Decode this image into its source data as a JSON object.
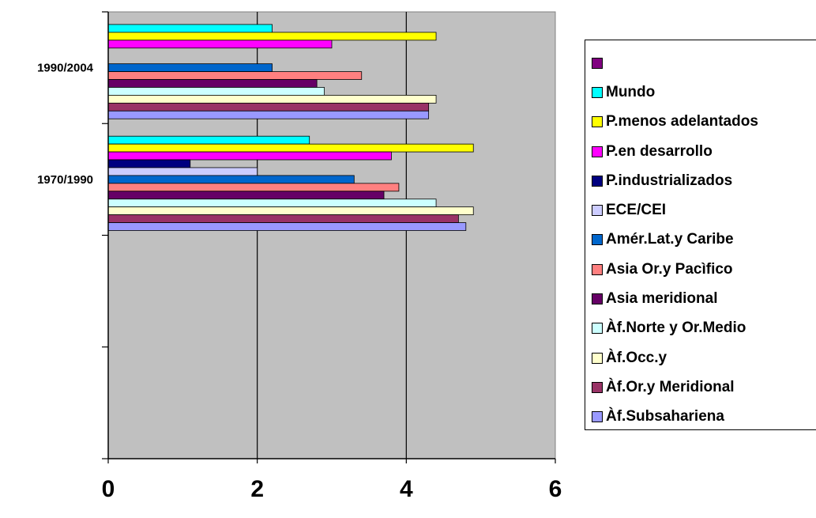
{
  "chart_data": {
    "type": "bar",
    "orientation": "horizontal",
    "categories": [
      "1990/2004",
      "1970/1990"
    ],
    "xlim": [
      0,
      6
    ],
    "x_ticks": [
      "0",
      "2",
      "4",
      "6"
    ],
    "grid": "vertical",
    "legend_position": "right",
    "series": [
      {
        "name": "",
        "color": "#800080",
        "values": [
          null,
          null
        ]
      },
      {
        "name": "Mundo",
        "color": "#00FFFF",
        "values": [
          2.2,
          2.7
        ]
      },
      {
        "name": "P.menos adelantados",
        "color": "#FFFF00",
        "values": [
          4.4,
          4.9
        ]
      },
      {
        "name": "P.en desarrollo",
        "color": "#FF00FF",
        "values": [
          3.0,
          3.8
        ]
      },
      {
        "name": "P.industrializados",
        "color": "#000080",
        "values": [
          null,
          1.1
        ]
      },
      {
        "name": "ECE/CEI",
        "color": "#CCCCFF",
        "values": [
          null,
          2.0
        ]
      },
      {
        "name": "Amér.Lat.y Caribe",
        "color": "#0066CC",
        "values": [
          2.2,
          3.3
        ]
      },
      {
        "name": "Asia Or.y Pacìfico",
        "color": "#FF8080",
        "values": [
          3.4,
          3.9
        ]
      },
      {
        "name": "Asia meridional",
        "color": "#660066",
        "values": [
          2.8,
          3.7
        ]
      },
      {
        "name": "Àf.Norte y Or.Medio",
        "color": "#CCFFFF",
        "values": [
          2.9,
          4.4
        ]
      },
      {
        "name": "Àf.Occ.y",
        "color": "#FFFFCC",
        "values": [
          4.4,
          4.9
        ]
      },
      {
        "name": "Àf.Or.y Meridional",
        "color": "#993366",
        "values": [
          4.3,
          4.7
        ]
      },
      {
        "name": "Àf.Subsahariena",
        "color": "#9999FF",
        "values": [
          4.3,
          4.8
        ]
      }
    ],
    "plot_background": "#C0C0C0"
  }
}
